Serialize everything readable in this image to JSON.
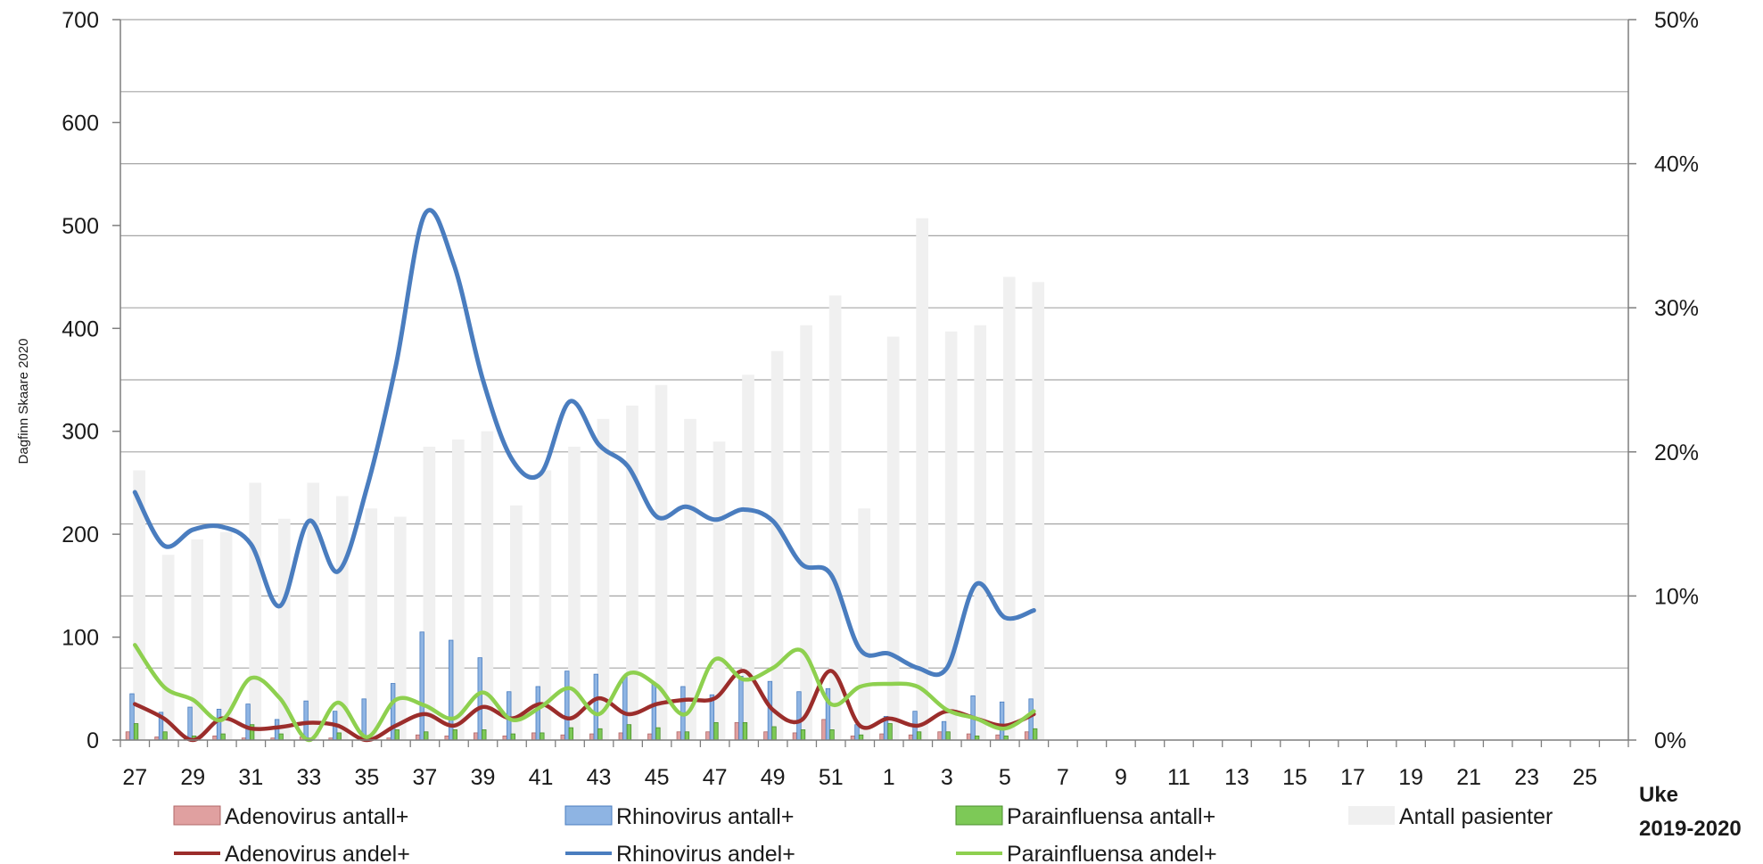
{
  "chart_data": {
    "type": "bar",
    "credit": "Dagfinn Skaare 2020",
    "xlabel": "Uke",
    "xlabel2": "2019-2020",
    "x_tick_labels": [
      "27",
      "29",
      "31",
      "33",
      "35",
      "37",
      "39",
      "41",
      "43",
      "45",
      "47",
      "49",
      "51",
      "1",
      "3",
      "5",
      "7",
      "9",
      "11",
      "13",
      "15",
      "17",
      "19",
      "21",
      "23",
      "25"
    ],
    "y_left": {
      "ylim": [
        0,
        700
      ],
      "ticks": [
        "0",
        "100",
        "200",
        "300",
        "400",
        "500",
        "600",
        "700"
      ]
    },
    "y_right": {
      "ylim": [
        0,
        50
      ],
      "ticks": [
        "0%",
        "10%",
        "20%",
        "30%",
        "40%",
        "50%"
      ]
    },
    "grid": true,
    "weeks": [
      "27",
      "28",
      "29",
      "30",
      "31",
      "32",
      "33",
      "34",
      "35",
      "36",
      "37",
      "38",
      "39",
      "40",
      "41",
      "42",
      "43",
      "44",
      "45",
      "46",
      "47",
      "48",
      "49",
      "50",
      "51",
      "52",
      "1",
      "2",
      "3",
      "4",
      "5",
      "6"
    ],
    "bar_series": [
      {
        "name": "Antall pasienter",
        "color": "#f0f0f0",
        "axis": "left",
        "values": [
          262,
          180,
          195,
          202,
          250,
          215,
          250,
          237,
          225,
          217,
          285,
          292,
          300,
          228,
          262,
          285,
          312,
          325,
          345,
          312,
          290,
          355,
          378,
          403,
          432,
          225,
          392,
          507,
          397,
          403,
          450,
          445
        ]
      },
      {
        "name": "Adenovirus antall+",
        "color": "#e0a0a0",
        "axis": "left",
        "values": [
          8,
          3,
          1,
          4,
          2,
          2,
          3,
          2,
          1,
          2,
          5,
          4,
          7,
          4,
          7,
          5,
          6,
          7,
          6,
          8,
          8,
          17,
          8,
          7,
          20,
          4,
          6,
          5,
          8,
          6,
          5,
          8
        ]
      },
      {
        "name": "Rhinovirus antall+",
        "color": "#8eb4e3",
        "axis": "left",
        "values": [
          45,
          27,
          32,
          30,
          35,
          20,
          38,
          28,
          40,
          55,
          105,
          97,
          80,
          47,
          52,
          67,
          64,
          62,
          55,
          52,
          44,
          62,
          57,
          47,
          50,
          15,
          23,
          28,
          18,
          43,
          37,
          40
        ]
      },
      {
        "name": "Parainfluensa antall+",
        "color": "#7dc957",
        "axis": "left",
        "values": [
          16,
          8,
          4,
          6,
          15,
          6,
          2,
          7,
          2,
          10,
          8,
          10,
          10,
          6,
          7,
          12,
          11,
          15,
          12,
          8,
          17,
          17,
          13,
          10,
          10,
          5,
          16,
          8,
          8,
          4,
          4,
          11
        ]
      }
    ],
    "line_series": [
      {
        "name": "Adenovirus andel+",
        "color": "#9b2d2b",
        "axis": "right",
        "values": [
          2.5,
          1.5,
          0.0,
          1.5,
          0.8,
          0.9,
          1.2,
          1.0,
          0.0,
          1.0,
          1.8,
          1.0,
          2.3,
          1.5,
          2.5,
          1.5,
          2.9,
          1.8,
          2.5,
          2.8,
          2.9,
          4.8,
          2.1,
          1.4,
          4.8,
          1.0,
          1.5,
          1.0,
          2.0,
          1.5,
          1.0,
          1.8
        ]
      },
      {
        "name": "Rhinovirus andel+",
        "color": "#4a7dbf",
        "axis": "right",
        "values": [
          17.2,
          13.5,
          14.6,
          14.8,
          13.6,
          9.3,
          15.2,
          11.7,
          17.5,
          26.0,
          36.5,
          33.0,
          25.0,
          19.5,
          18.5,
          23.5,
          20.5,
          19.0,
          15.5,
          16.2,
          15.3,
          16.0,
          15.2,
          12.2,
          11.5,
          6.3,
          6.0,
          5.0,
          5.0,
          10.8,
          8.5,
          9.0
        ]
      },
      {
        "name": "Parainfluensa andel+",
        "color": "#8ed04f",
        "axis": "right",
        "values": [
          6.6,
          3.7,
          2.8,
          1.4,
          4.3,
          2.9,
          0.0,
          2.6,
          0.2,
          2.8,
          2.4,
          1.5,
          3.3,
          1.4,
          2.3,
          3.6,
          1.8,
          4.6,
          3.8,
          1.8,
          5.6,
          4.2,
          5.0,
          6.2,
          2.5,
          3.7,
          3.9,
          3.7,
          2.1,
          1.5,
          0.8,
          2.0
        ]
      }
    ],
    "legend": {
      "placement": "bottom",
      "items": [
        "Adenovirus antall+",
        "Rhinovirus antall+",
        "Parainfluensa antall+",
        "Antall pasienter",
        "Adenovirus andel+",
        "Rhinovirus andel+",
        "Parainfluensa andel+"
      ]
    }
  }
}
